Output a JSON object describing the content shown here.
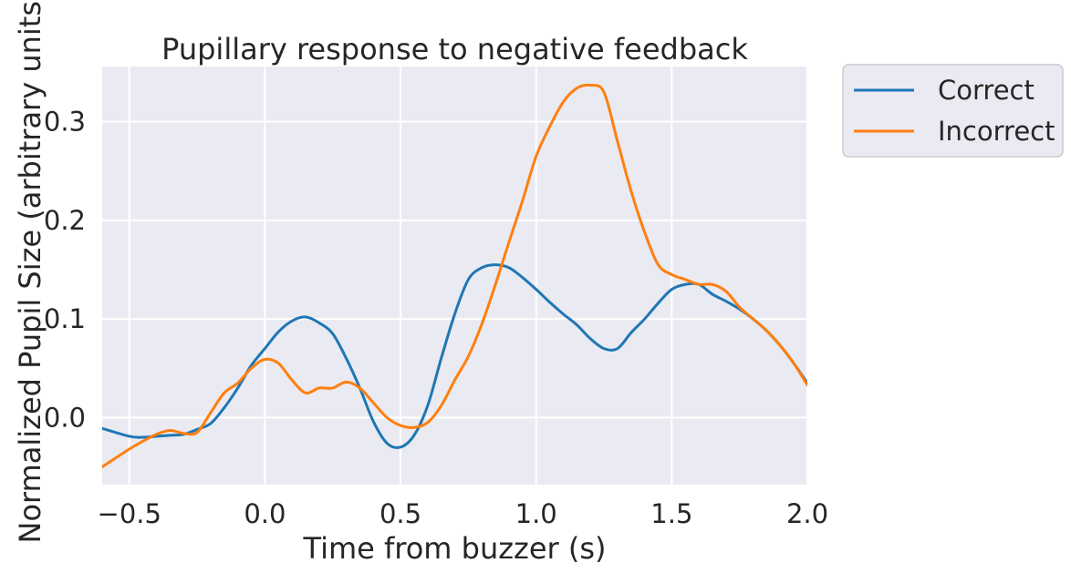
{
  "chart_data": {
    "type": "line",
    "title": "Pupillary response to negative feedback",
    "xlabel": "Time from buzzer (s)",
    "ylabel": "Normalized Pupil Size (arbitrary units)",
    "xlim": [
      -0.6,
      2.0
    ],
    "ylim": [
      -0.068,
      0.356
    ],
    "xticks": [
      -0.5,
      0.0,
      0.5,
      1.0,
      1.5,
      2.0
    ],
    "xtick_labels": [
      "−0.5",
      "0.0",
      "0.5",
      "1.0",
      "1.5",
      "2.0"
    ],
    "yticks": [
      0.0,
      0.1,
      0.2,
      0.3
    ],
    "ytick_labels": [
      "0.0",
      "0.1",
      "0.2",
      "0.3"
    ],
    "grid": true,
    "legend": "outside-top-right",
    "series": [
      {
        "name": "Correct",
        "color": "#1f77b4",
        "x": [
          -0.6,
          -0.5,
          -0.45,
          -0.4,
          -0.35,
          -0.3,
          -0.25,
          -0.2,
          -0.15,
          -0.1,
          -0.05,
          0.0,
          0.05,
          0.1,
          0.15,
          0.2,
          0.25,
          0.3,
          0.35,
          0.4,
          0.45,
          0.5,
          0.55,
          0.6,
          0.65,
          0.7,
          0.75,
          0.8,
          0.85,
          0.9,
          0.95,
          1.0,
          1.05,
          1.1,
          1.15,
          1.2,
          1.25,
          1.3,
          1.35,
          1.4,
          1.45,
          1.5,
          1.55,
          1.6,
          1.65,
          1.7,
          1.75,
          1.8,
          1.85,
          1.9,
          1.95,
          2.0
        ],
        "y": [
          -0.011,
          -0.019,
          -0.02,
          -0.019,
          -0.018,
          -0.017,
          -0.012,
          -0.006,
          0.01,
          0.03,
          0.053,
          0.07,
          0.087,
          0.098,
          0.102,
          0.096,
          0.085,
          0.06,
          0.03,
          -0.004,
          -0.026,
          -0.03,
          -0.018,
          0.012,
          0.06,
          0.105,
          0.14,
          0.152,
          0.155,
          0.152,
          0.142,
          0.13,
          0.117,
          0.105,
          0.094,
          0.08,
          0.07,
          0.07,
          0.086,
          0.1,
          0.116,
          0.13,
          0.135,
          0.135,
          0.125,
          0.118,
          0.11,
          0.1,
          0.088,
          0.073,
          0.055,
          0.035
        ]
      },
      {
        "name": "Incorrect",
        "color": "#ff7f0e",
        "x": [
          -0.6,
          -0.5,
          -0.45,
          -0.4,
          -0.35,
          -0.3,
          -0.25,
          -0.2,
          -0.15,
          -0.1,
          -0.05,
          0.0,
          0.05,
          0.1,
          0.15,
          0.2,
          0.25,
          0.3,
          0.35,
          0.4,
          0.45,
          0.5,
          0.55,
          0.6,
          0.65,
          0.7,
          0.75,
          0.8,
          0.85,
          0.9,
          0.95,
          1.0,
          1.05,
          1.1,
          1.15,
          1.2,
          1.25,
          1.3,
          1.35,
          1.4,
          1.45,
          1.5,
          1.55,
          1.6,
          1.65,
          1.7,
          1.75,
          1.8,
          1.85,
          1.9,
          1.95,
          2.0
        ],
        "y": [
          -0.05,
          -0.032,
          -0.024,
          -0.017,
          -0.013,
          -0.016,
          -0.015,
          0.005,
          0.025,
          0.035,
          0.05,
          0.059,
          0.055,
          0.038,
          0.025,
          0.03,
          0.03,
          0.036,
          0.03,
          0.015,
          0.0,
          -0.008,
          -0.01,
          -0.005,
          0.012,
          0.038,
          0.062,
          0.095,
          0.135,
          0.178,
          0.22,
          0.265,
          0.295,
          0.32,
          0.334,
          0.337,
          0.33,
          0.28,
          0.23,
          0.188,
          0.155,
          0.145,
          0.14,
          0.135,
          0.135,
          0.128,
          0.112,
          0.1,
          0.088,
          0.073,
          0.055,
          0.033
        ]
      }
    ]
  }
}
